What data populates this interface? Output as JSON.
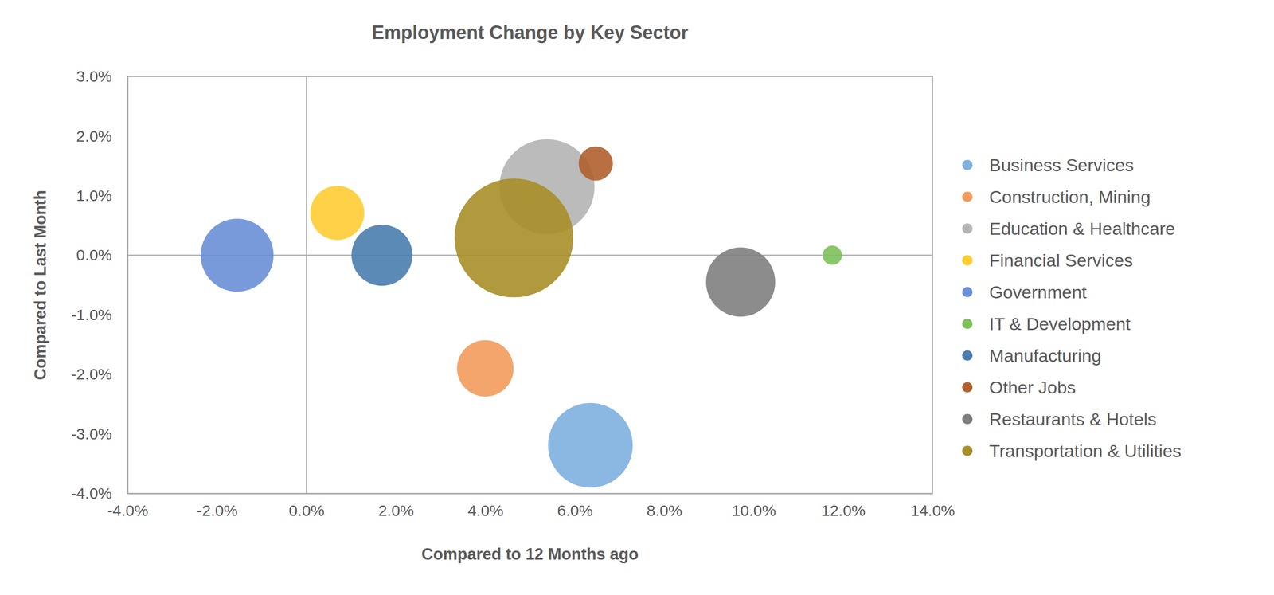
{
  "chart_data": {
    "type": "bubble",
    "title": "Employment Change by Key Sector",
    "x_label": "Compared to 12 Months ago",
    "y_label": "Compared to Last Month",
    "xlim": [
      -4,
      14
    ],
    "xticks": [
      {
        "value": -4,
        "label": "-4.0%"
      },
      {
        "value": -2,
        "label": "-2.0%"
      },
      {
        "value": 0,
        "label": "0.0%"
      },
      {
        "value": 2,
        "label": "2.0%"
      },
      {
        "value": 4,
        "label": "4.0%"
      },
      {
        "value": 6,
        "label": "6.0%"
      },
      {
        "value": 8,
        "label": "8.0%"
      },
      {
        "value": 10,
        "label": "10.0%"
      },
      {
        "value": 12,
        "label": "12.0%"
      },
      {
        "value": 14,
        "label": "14.0%"
      }
    ],
    "ylim": [
      -4,
      3
    ],
    "yticks": [
      {
        "value": -4,
        "label": "-4.0%"
      },
      {
        "value": -3,
        "label": "-3.0%"
      },
      {
        "value": -2,
        "label": "-2.0%"
      },
      {
        "value": -1,
        "label": "-1.0%"
      },
      {
        "value": 0,
        "label": "0.0%"
      },
      {
        "value": 1,
        "label": "1.0%"
      },
      {
        "value": 2,
        "label": "2.0%"
      },
      {
        "value": 3,
        "label": "3.0%"
      }
    ],
    "grid": false,
    "legend": "right",
    "series": [
      {
        "name": "Business Services",
        "color": "#7eb0e0",
        "x": [
          6.35
        ],
        "values": [
          -3.19
        ],
        "size": [
          27
        ]
      },
      {
        "name": "Construction, Mining",
        "color": "#f29b5c",
        "x": [
          4.0
        ],
        "values": [
          -1.9
        ],
        "size": [
          12
        ]
      },
      {
        "name": "Education & Healthcare",
        "color": "#b4b4b4",
        "x": [
          5.38
        ],
        "values": [
          1.15
        ],
        "size": [
          34
        ]
      },
      {
        "name": "Financial Services",
        "color": "#ffcc33",
        "x": [
          0.69
        ],
        "values": [
          0.71
        ],
        "size": [
          11
        ]
      },
      {
        "name": "Government",
        "color": "#6a8fd6",
        "x": [
          -1.55
        ],
        "values": [
          0
        ],
        "size": [
          20
        ]
      },
      {
        "name": "IT & Development",
        "color": "#7dc05a",
        "x": [
          11.76
        ],
        "values": [
          0
        ],
        "size": [
          1.4
        ]
      },
      {
        "name": "Manufacturing",
        "color": "#4a7dae",
        "x": [
          1.69
        ],
        "values": [
          0
        ],
        "size": [
          14
        ]
      },
      {
        "name": "Other Jobs",
        "color": "#b0602f",
        "x": [
          6.47
        ],
        "values": [
          1.54
        ],
        "size": [
          4.4
        ]
      },
      {
        "name": "Restaurants & Hotels",
        "color": "#7f7f7f",
        "x": [
          9.71
        ],
        "values": [
          -0.45
        ],
        "size": [
          18
        ]
      },
      {
        "name": "Transportation & Utilities",
        "color": "#a88e28",
        "x": [
          4.64
        ],
        "values": [
          0.29
        ],
        "size": [
          53
        ]
      }
    ]
  }
}
